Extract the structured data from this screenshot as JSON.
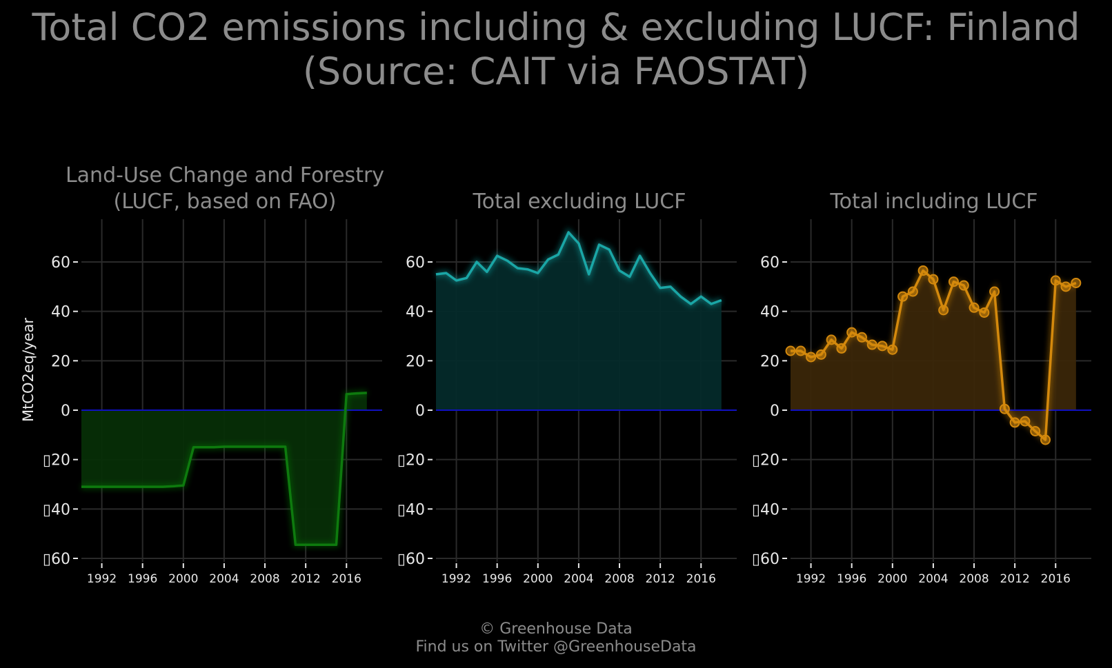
{
  "title": "Total CO2 emissions including & excluding LUCF: Finland\n(Source: CAIT via FAOSTAT)",
  "footer": {
    "line1": "© Greenhouse Data",
    "line2": "Find us on Twitter @GreenhouseData"
  },
  "chart_data": [
    {
      "type": "area",
      "title": "Land-Use Change and Forestry\n(LUCF, based on FAO)",
      "ylabel": "MtCO2eq/year",
      "xlabel": "",
      "xlim": [
        1990,
        2019.5
      ],
      "ylim": [
        -60,
        75
      ],
      "yticks": [
        60,
        40,
        20,
        0,
        -20,
        -40,
        -60
      ],
      "ytick_labels": [
        "60",
        "40",
        "20",
        "0",
        "▯20",
        "▯40",
        "▯60"
      ],
      "xticks": [
        1992,
        1996,
        2000,
        2004,
        2008,
        2012,
        2016
      ],
      "grid": true,
      "color": "#0e7a0e",
      "fill": "#062e06",
      "markers": false,
      "x": [
        1990,
        1991,
        1992,
        1993,
        1994,
        1995,
        1996,
        1997,
        1998,
        1999,
        2000,
        2001,
        2002,
        2003,
        2004,
        2005,
        2006,
        2007,
        2008,
        2009,
        2010,
        2011,
        2012,
        2013,
        2014,
        2015,
        2016,
        2017,
        2018
      ],
      "values": [
        -31,
        -31,
        -31,
        -31,
        -31,
        -31,
        -31,
        -31,
        -31,
        -30.8,
        -30.5,
        -15,
        -15,
        -15,
        -14.8,
        -14.8,
        -14.8,
        -14.8,
        -14.8,
        -14.8,
        -14.8,
        -54.5,
        -54.5,
        -54.5,
        -54.5,
        -54.5,
        6.5,
        6.8,
        7
      ]
    },
    {
      "type": "area",
      "title": "Total excluding LUCF",
      "xlabel": "",
      "xlim": [
        1990,
        2019.5
      ],
      "ylim": [
        -60,
        75
      ],
      "yticks": [
        60,
        40,
        20,
        0,
        -20,
        -40,
        -60
      ],
      "ytick_labels": [
        "60",
        "40",
        "20",
        "0",
        "▯20",
        "▯40",
        "▯60"
      ],
      "xticks": [
        1992,
        1996,
        2000,
        2004,
        2008,
        2012,
        2016
      ],
      "grid": true,
      "color": "#1aa6a6",
      "fill": "#042a2a",
      "markers": false,
      "x": [
        1990,
        1991,
        1992,
        1993,
        1994,
        1995,
        1996,
        1997,
        1998,
        1999,
        2000,
        2001,
        2002,
        2003,
        2004,
        2005,
        2006,
        2007,
        2008,
        2009,
        2010,
        2011,
        2012,
        2013,
        2014,
        2015,
        2016,
        2017,
        2018
      ],
      "values": [
        55,
        55.5,
        52.5,
        53.5,
        60,
        56,
        62.5,
        60.5,
        57.5,
        57,
        55.5,
        61,
        63,
        72,
        67.5,
        55,
        67,
        65,
        56.5,
        54,
        62.5,
        55.5,
        49.5,
        50,
        46,
        43,
        46,
        43,
        44.5
      ]
    },
    {
      "type": "area",
      "title": "Total including LUCF",
      "xlabel": "",
      "xlim": [
        1990,
        2019.5
      ],
      "ylim": [
        -60,
        75
      ],
      "yticks": [
        60,
        40,
        20,
        0,
        -20,
        -40,
        -60
      ],
      "ytick_labels": [
        "60",
        "40",
        "20",
        "0",
        "▯20",
        "▯40",
        "▯60"
      ],
      "xticks": [
        1992,
        1996,
        2000,
        2004,
        2008,
        2012,
        2016
      ],
      "grid": true,
      "color": "#d4890d",
      "fill": "#3a2608",
      "markers": true,
      "x": [
        1990,
        1991,
        1992,
        1993,
        1994,
        1995,
        1996,
        1997,
        1998,
        1999,
        2000,
        2001,
        2002,
        2003,
        2004,
        2005,
        2006,
        2007,
        2008,
        2009,
        2010,
        2011,
        2012,
        2013,
        2014,
        2015,
        2016,
        2017,
        2018
      ],
      "values": [
        24,
        24,
        21.5,
        22.5,
        28.5,
        25,
        31.5,
        29.5,
        26.5,
        26,
        24.5,
        46,
        48,
        56.5,
        53,
        40.5,
        52,
        50.5,
        41.5,
        39.5,
        48,
        0.5,
        -5,
        -4.5,
        -8.5,
        -12,
        52.5,
        50,
        51.5
      ]
    }
  ]
}
